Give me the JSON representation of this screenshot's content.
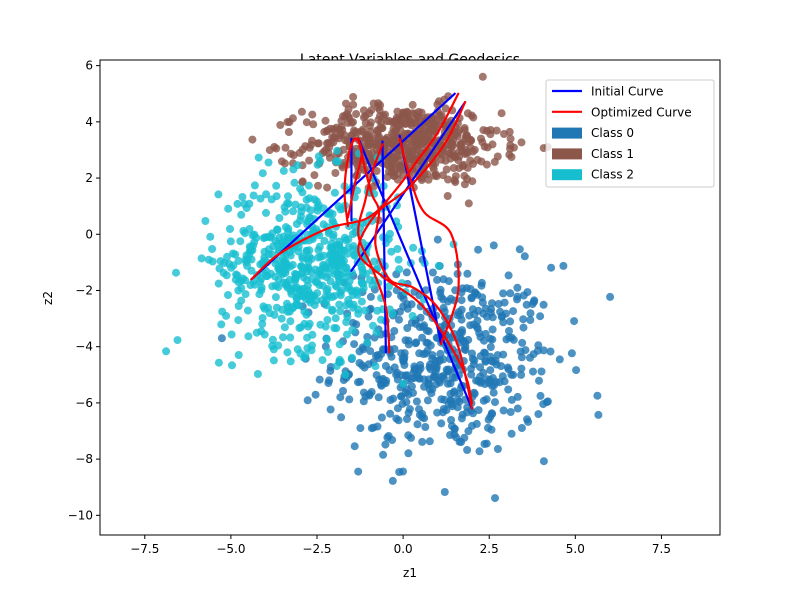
{
  "chart_data": {
    "type": "scatter",
    "title": "Latent Variables and Geodesics",
    "xlabel": "z1",
    "ylabel": "z2",
    "xlim": [
      -8.8,
      9.2
    ],
    "ylim": [
      -10.7,
      6.2
    ],
    "xticks": [
      -7.5,
      -5.0,
      -2.5,
      0.0,
      2.5,
      5.0,
      7.5
    ],
    "yticks": [
      -10,
      -8,
      -6,
      -4,
      -2,
      0,
      2,
      4,
      6
    ],
    "xtick_labels": [
      "−7.5",
      "−5.0",
      "−2.5",
      "0.0",
      "2.5",
      "5.0",
      "7.5"
    ],
    "ytick_labels": [
      "−10",
      "−8",
      "−6",
      "−4",
      "−2",
      "0",
      "2",
      "4",
      "6"
    ],
    "grid": false,
    "legend_position": "top-right",
    "classes": [
      {
        "name": "Class 0",
        "color": "#1f77b4",
        "center": [
          1.2,
          -4.5
        ],
        "spread": [
          1.6,
          1.7
        ],
        "count": 550
      },
      {
        "name": "Class 1",
        "color": "#8c564b",
        "center": [
          0.0,
          3.2
        ],
        "spread": [
          1.4,
          0.7
        ],
        "count": 600
      },
      {
        "name": "Class 2",
        "color": "#17becf",
        "center": [
          -2.7,
          -1.0
        ],
        "spread": [
          1.3,
          1.5
        ],
        "count": 600
      }
    ],
    "curves": [
      {
        "name": "Initial Curve",
        "color": "#0000ff",
        "paths": [
          [
            [
              -4.4,
              -1.6
            ],
            [
              1.5,
              5.0
            ]
          ],
          [
            [
              -1.5,
              0.5
            ],
            [
              -1.5,
              3.4
            ]
          ],
          [
            [
              -1.3,
              3.4
            ],
            [
              2.0,
              -6.2
            ]
          ],
          [
            [
              -0.6,
              3.3
            ],
            [
              -0.5,
              -4.2
            ]
          ],
          [
            [
              -0.1,
              3.5
            ],
            [
              1.1,
              -3.9
            ]
          ],
          [
            [
              -1.5,
              -1.3
            ],
            [
              1.8,
              4.7
            ]
          ]
        ]
      },
      {
        "name": "Optimized Curve",
        "color": "#ff0000",
        "paths": [
          [
            [
              -4.4,
              -1.6
            ],
            [
              -3.6,
              -0.7
            ],
            [
              -2.2,
              0.2
            ],
            [
              -1.0,
              0.6
            ],
            [
              -0.2,
              1.6
            ],
            [
              0.4,
              2.6
            ],
            [
              1.0,
              3.6
            ],
            [
              1.6,
              5.0
            ]
          ],
          [
            [
              -1.6,
              0.3
            ],
            [
              -1.7,
              1.5
            ],
            [
              -1.6,
              2.7
            ],
            [
              -1.4,
              3.4
            ],
            [
              -1.2,
              2.9
            ],
            [
              -1.4,
              1.8
            ],
            [
              -1.6,
              0.6
            ]
          ],
          [
            [
              -1.3,
              3.4
            ],
            [
              -1.1,
              2.3
            ],
            [
              -0.9,
              1.4
            ],
            [
              -0.7,
              0.8
            ],
            [
              -0.8,
              -0.4
            ],
            [
              -0.4,
              -1.6
            ],
            [
              0.3,
              -1.9
            ],
            [
              1.0,
              -2.6
            ],
            [
              1.6,
              -4.0
            ],
            [
              2.0,
              -6.2
            ]
          ],
          [
            [
              -0.6,
              3.2
            ],
            [
              -0.9,
              2.2
            ],
            [
              -1.1,
              1.2
            ],
            [
              -1.3,
              0.0
            ],
            [
              -0.9,
              -1.2
            ],
            [
              -0.5,
              -2.6
            ],
            [
              -0.4,
              -4.2
            ]
          ],
          [
            [
              -0.1,
              3.4
            ],
            [
              0.2,
              2.0
            ],
            [
              0.6,
              0.8
            ],
            [
              1.4,
              0.0
            ],
            [
              1.6,
              -2.0
            ],
            [
              1.1,
              -3.9
            ]
          ],
          [
            [
              1.8,
              4.7
            ],
            [
              1.2,
              3.2
            ],
            [
              0.2,
              1.7
            ],
            [
              -0.8,
              0.7
            ],
            [
              -1.3,
              -0.6
            ],
            [
              -0.6,
              -1.5
            ],
            [
              0.6,
              -2.6
            ],
            [
              1.7,
              -4.7
            ],
            [
              2.0,
              -6.0
            ]
          ]
        ]
      }
    ],
    "legend": [
      {
        "label": "Initial Curve",
        "kind": "line",
        "color": "#0000ff"
      },
      {
        "label": "Optimized Curve",
        "kind": "line",
        "color": "#ff0000"
      },
      {
        "label": "Class 0",
        "kind": "patch",
        "color": "#1f77b4"
      },
      {
        "label": "Class 1",
        "kind": "patch",
        "color": "#8c564b"
      },
      {
        "label": "Class 2",
        "kind": "patch",
        "color": "#17becf"
      }
    ]
  }
}
